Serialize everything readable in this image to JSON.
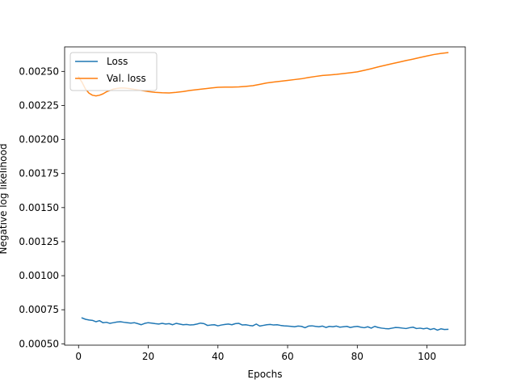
{
  "chart_data": {
    "type": "line",
    "title": "",
    "xlabel": "Epochs",
    "ylabel": "Negative log likelihood",
    "xlim": [
      -4,
      111
    ],
    "ylim": [
      0.00049,
      0.00268
    ],
    "xticks": [
      0,
      20,
      40,
      60,
      80,
      100
    ],
    "xtick_labels": [
      "0",
      "20",
      "40",
      "60",
      "80",
      "100"
    ],
    "yticks": [
      0.0005,
      0.00075,
      0.001,
      0.00125,
      0.0015,
      0.00175,
      0.002,
      0.00225,
      0.0025
    ],
    "ytick_labels": [
      "0.00050",
      "0.00075",
      "0.00100",
      "0.00125",
      "0.00150",
      "0.00175",
      "0.00200",
      "0.00225",
      "0.00250"
    ],
    "grid": false,
    "legend_position": "upper left",
    "series": [
      {
        "name": "Loss",
        "color": "#1f77b4",
        "x": [
          1,
          2,
          3,
          4,
          5,
          6,
          7,
          8,
          9,
          10,
          11,
          12,
          13,
          14,
          15,
          16,
          17,
          18,
          19,
          20,
          21,
          22,
          23,
          24,
          25,
          26,
          27,
          28,
          29,
          30,
          31,
          32,
          33,
          34,
          35,
          36,
          37,
          38,
          39,
          40,
          41,
          42,
          43,
          44,
          45,
          46,
          47,
          48,
          49,
          50,
          51,
          52,
          53,
          54,
          55,
          56,
          57,
          58,
          59,
          60,
          61,
          62,
          63,
          64,
          65,
          66,
          67,
          68,
          69,
          70,
          71,
          72,
          73,
          74,
          75,
          76,
          77,
          78,
          79,
          80,
          81,
          82,
          83,
          84,
          85,
          86,
          87,
          88,
          89,
          90,
          91,
          92,
          93,
          94,
          95,
          96,
          97,
          98,
          99,
          100,
          101,
          102,
          103,
          104,
          105,
          106
        ],
        "y": [
          0.00069,
          0.00068,
          0.000675,
          0.000672,
          0.000662,
          0.00067,
          0.000655,
          0.000658,
          0.00065,
          0.000655,
          0.00066,
          0.000662,
          0.000658,
          0.000655,
          0.000652,
          0.000655,
          0.000648,
          0.00064,
          0.00065,
          0.000655,
          0.000652,
          0.000648,
          0.000645,
          0.00065,
          0.000645,
          0.000648,
          0.00064,
          0.00065,
          0.000645,
          0.00064,
          0.000642,
          0.000638,
          0.00064,
          0.000645,
          0.000652,
          0.000648,
          0.000635,
          0.000638,
          0.00064,
          0.000632,
          0.000638,
          0.000642,
          0.000645,
          0.00064,
          0.000648,
          0.00065,
          0.000638,
          0.00064,
          0.000635,
          0.000632,
          0.000645,
          0.00063,
          0.000635,
          0.00064,
          0.000642,
          0.000638,
          0.00064,
          0.000635,
          0.000632,
          0.00063,
          0.000628,
          0.000625,
          0.00063,
          0.000628,
          0.000618,
          0.00063,
          0.000632,
          0.000628,
          0.000625,
          0.00063,
          0.00062,
          0.000628,
          0.000625,
          0.00063,
          0.000622,
          0.000625,
          0.000628,
          0.00062,
          0.000625,
          0.000628,
          0.000622,
          0.000618,
          0.000625,
          0.000615,
          0.000628,
          0.00062,
          0.000615,
          0.000612,
          0.00061,
          0.000615,
          0.00062,
          0.000618,
          0.000615,
          0.000612,
          0.000618,
          0.000622,
          0.000612,
          0.000615,
          0.00061,
          0.000615,
          0.000605,
          0.000612,
          0.0006,
          0.00061,
          0.000605,
          0.000606
        ]
      },
      {
        "name": "Val. loss",
        "color": "#ff7f0e",
        "x": [
          0,
          1,
          2,
          3,
          4,
          5,
          6,
          7,
          8,
          9,
          10,
          11,
          12,
          13,
          14,
          15,
          16,
          18,
          20,
          22,
          24,
          26,
          28,
          30,
          32,
          34,
          36,
          38,
          40,
          42,
          44,
          46,
          48,
          50,
          52,
          54,
          56,
          58,
          60,
          62,
          64,
          66,
          68,
          70,
          72,
          74,
          76,
          78,
          80,
          82,
          84,
          86,
          88,
          90,
          92,
          94,
          96,
          98,
          100,
          102,
          104,
          106
        ],
        "y": [
          0.00246,
          0.00242,
          0.00237,
          0.00234,
          0.002325,
          0.00232,
          0.002325,
          0.002335,
          0.00235,
          0.00236,
          0.00237,
          0.002375,
          0.002378,
          0.002378,
          0.002376,
          0.002372,
          0.002368,
          0.00236,
          0.002352,
          0.002346,
          0.002343,
          0.002342,
          0.002346,
          0.002352,
          0.00236,
          0.002366,
          0.002372,
          0.002378,
          0.002383,
          0.002385,
          0.002385,
          0.002386,
          0.00239,
          0.002395,
          0.002405,
          0.002415,
          0.002422,
          0.002428,
          0.002434,
          0.00244,
          0.002446,
          0.002455,
          0.002463,
          0.00247,
          0.002474,
          0.002478,
          0.002484,
          0.00249,
          0.002497,
          0.002508,
          0.00252,
          0.002533,
          0.002545,
          0.002557,
          0.002568,
          0.00258,
          0.00259,
          0.002602,
          0.002613,
          0.002624,
          0.002632,
          0.002638
        ]
      }
    ]
  }
}
